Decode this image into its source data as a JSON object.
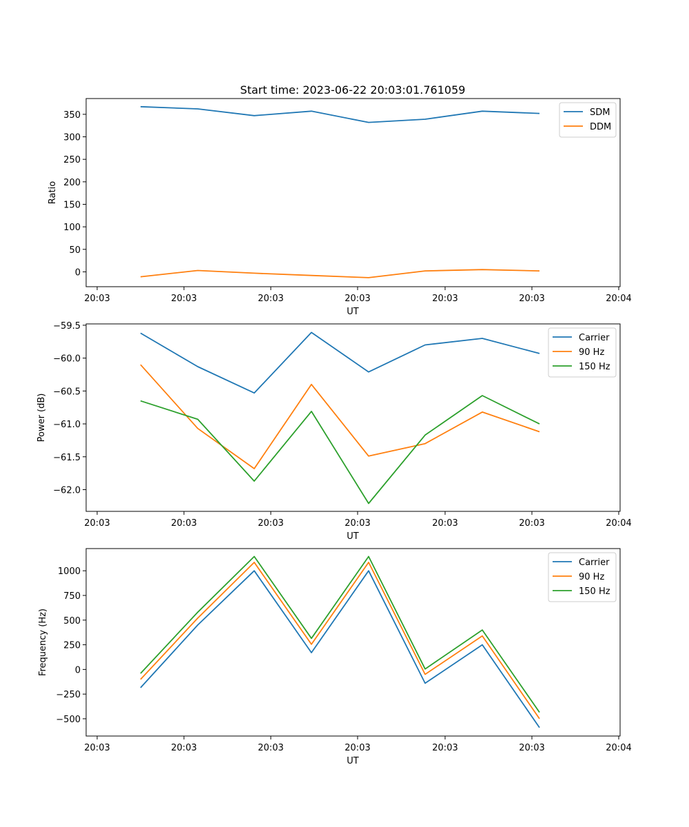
{
  "title": "Start time: 2023-06-22 20:03:01.761059",
  "chart_data": [
    {
      "type": "line",
      "xlabel": "UT",
      "ylabel": "Ratio",
      "xtick_labels": [
        "20:03",
        "20:03",
        "20:03",
        "20:03",
        "20:03",
        "20:03",
        "20:03",
        "20:04"
      ],
      "yticks": [
        0,
        50,
        100,
        150,
        200,
        250,
        300,
        350
      ],
      "ylim": [
        -33,
        385
      ],
      "legend_position": "top-right",
      "series": [
        {
          "name": "SDM",
          "color": "#1f77b4",
          "values": [
            367,
            362,
            347,
            357,
            332,
            339,
            357,
            352
          ]
        },
        {
          "name": "DDM",
          "color": "#ff7f0e",
          "values": [
            -11,
            3,
            -3,
            -8,
            -13,
            2,
            5,
            2
          ]
        }
      ]
    },
    {
      "type": "line",
      "xlabel": "UT",
      "ylabel": "Power (dB)",
      "xtick_labels": [
        "20:03",
        "20:03",
        "20:03",
        "20:03",
        "20:03",
        "20:03",
        "20:03",
        "20:04"
      ],
      "yticks": [
        -59.5,
        -60.0,
        -60.5,
        -61.0,
        -61.5,
        -62.0
      ],
      "ytick_labels": [
        "−59.5",
        "−60.0",
        "−60.5",
        "−61.0",
        "−61.5",
        "−62.0"
      ],
      "ylim": [
        -62.33,
        -59.48
      ],
      "legend_position": "top-right",
      "series": [
        {
          "name": "Carrier",
          "color": "#1f77b4",
          "values": [
            -59.62,
            -60.13,
            -60.53,
            -59.61,
            -60.21,
            -59.8,
            -59.7,
            -59.93
          ]
        },
        {
          "name": "90 Hz",
          "color": "#ff7f0e",
          "values": [
            -60.1,
            -61.07,
            -61.68,
            -60.4,
            -61.49,
            -61.3,
            -60.82,
            -61.12
          ]
        },
        {
          "name": "150 Hz",
          "color": "#2ca02c",
          "values": [
            -60.65,
            -60.93,
            -61.87,
            -60.81,
            -62.21,
            -61.17,
            -60.57,
            -61.0
          ]
        }
      ]
    },
    {
      "type": "line",
      "xlabel": "UT",
      "ylabel": "Frequency (Hz)",
      "xtick_labels": [
        "20:03",
        "20:03",
        "20:03",
        "20:03",
        "20:03",
        "20:03",
        "20:03",
        "20:04"
      ],
      "yticks": [
        1000,
        750,
        500,
        250,
        0,
        -250,
        -500
      ],
      "ytick_labels": [
        "1000",
        "750",
        "500",
        "250",
        "0",
        "−250",
        "−500"
      ],
      "ylim": [
        -675,
        1225
      ],
      "legend_position": "top-right",
      "series": [
        {
          "name": "Carrier",
          "color": "#1f77b4",
          "values": [
            -185,
            450,
            1000,
            170,
            1000,
            -140,
            250,
            -590
          ]
        },
        {
          "name": "90 Hz",
          "color": "#ff7f0e",
          "values": [
            -100,
            520,
            1085,
            255,
            1085,
            -50,
            340,
            -500
          ]
        },
        {
          "name": "150 Hz",
          "color": "#2ca02c",
          "values": [
            -40,
            580,
            1145,
            315,
            1145,
            5,
            400,
            -435
          ]
        }
      ]
    }
  ]
}
